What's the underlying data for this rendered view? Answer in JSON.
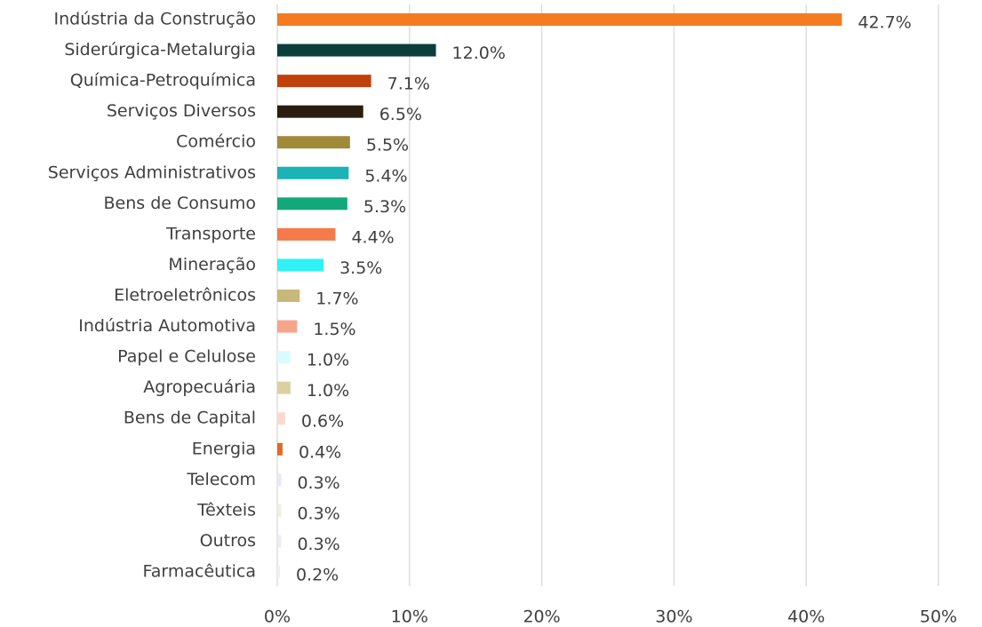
{
  "chart_data": {
    "type": "barh",
    "categories": [
      "Indústria da Construção",
      "Siderúrgica-Metalurgia",
      "Química-Petroquímica",
      "Serviços Diversos",
      "Comércio",
      "Serviços Administrativos",
      "Bens de Consumo",
      "Transporte",
      "Mineração",
      "Eletroeletrônicos",
      "Indústria Automotiva",
      "Papel e Celulose",
      "Agropecuária",
      "Bens de Capital",
      "Energia",
      "Telecom",
      "Têxteis",
      "Outros",
      "Farmacêutica"
    ],
    "values": [
      42.7,
      12.0,
      7.1,
      6.5,
      5.5,
      5.4,
      5.3,
      4.4,
      3.5,
      1.7,
      1.5,
      1.0,
      1.0,
      0.6,
      0.4,
      0.3,
      0.3,
      0.3,
      0.2
    ],
    "value_labels": [
      "42.7%",
      "12.0%",
      "7.1%",
      "6.5%",
      "5.5%",
      "5.4%",
      "5.3%",
      "4.4%",
      "3.5%",
      "1.7%",
      "1.5%",
      "1.0%",
      "1.0%",
      "0.6%",
      "0.4%",
      "0.3%",
      "0.3%",
      "0.3%",
      "0.2%"
    ],
    "colors": [
      "#f47b20",
      "#0b3d3a",
      "#c0410b",
      "#2a1d0e",
      "#a08a3a",
      "#1bb3b5",
      "#12a87a",
      "#f47a4a",
      "#2ef2f5",
      "#c9b77a",
      "#f7a58a",
      "#d9fbfd",
      "#ddd0a0",
      "#fbd9cc",
      "#e06a20",
      "#e8e8f0",
      "#f0ece6",
      "#ebebf2",
      "#f0f0f0"
    ],
    "xlim": [
      0,
      50
    ],
    "xticks": [
      {
        "value": 0,
        "label": "0%"
      },
      {
        "value": 10,
        "label": "10%"
      },
      {
        "value": 20,
        "label": "20%"
      },
      {
        "value": 30,
        "label": "30%"
      },
      {
        "value": 40,
        "label": "40%"
      },
      {
        "value": 50,
        "label": "50%"
      }
    ],
    "grid": true
  }
}
